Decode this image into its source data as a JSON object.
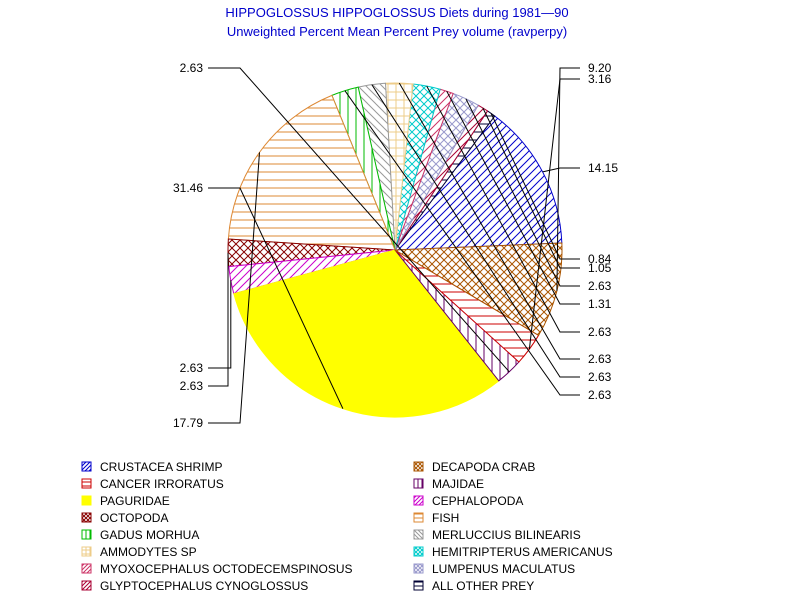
{
  "chart_data": {
    "type": "pie",
    "title": "HIPPOGLOSSUS HIPPOGLOSSUS Diets during 1981—90",
    "subtitle": "Unweighted Percent Mean Percent Prey  volume (ravperpy)",
    "slices": [
      {
        "name": "CRUSTACEA SHRIMP",
        "label": "14.15",
        "value": 14.15,
        "color": "#0000cc",
        "pattern": "diag-up"
      },
      {
        "name": "ALL OTHER PREY",
        "label": "0.84",
        "value": 0.84,
        "color": "#000033",
        "pattern": "horiz"
      },
      {
        "name": "GLYPTOCEPHALUS CYNOGLOSSUS",
        "label": "1.05",
        "value": 1.05,
        "color": "#aa0033",
        "pattern": "diag-up"
      },
      {
        "name": "LUMPENUS MACULATUS",
        "label": "2.63",
        "value": 2.63,
        "color": "#9999cc",
        "pattern": "cross-diag"
      },
      {
        "name": "MYOXOCEPHALUS OCTODECEMSPINOSUS",
        "label": "1.31",
        "value": 1.31,
        "color": "#cc3366",
        "pattern": "diag-up"
      },
      {
        "name": "HEMITRIPTERUS AMERICANUS",
        "label": "2.63",
        "value": 2.63,
        "color": "#00cccc",
        "pattern": "cross-diag"
      },
      {
        "name": "AMMODYTES SP",
        "label": "2.63",
        "value": 2.63,
        "color": "#eecc88",
        "pattern": "grid"
      },
      {
        "name": "MERLUCCIUS BILINEARIS",
        "label": "2.63",
        "value": 2.63,
        "color": "#999999",
        "pattern": "diag-down"
      },
      {
        "name": "GADUS MORHUA",
        "label": "2.63",
        "value": 2.63,
        "color": "#00bb00",
        "pattern": "vert"
      },
      {
        "name": "FISH",
        "label": "17.79",
        "value": 17.79,
        "color": "#dd8833",
        "pattern": "horiz"
      },
      {
        "name": "OCTOPODA",
        "label": "2.63",
        "value": 2.63,
        "color": "#880000",
        "pattern": "cross-diag"
      },
      {
        "name": "CEPHALOPODA",
        "label": "2.63",
        "value": 2.63,
        "color": "#cc00cc",
        "pattern": "diag-up"
      },
      {
        "name": "PAGURIDAE",
        "label": "31.46",
        "value": 31.46,
        "color": "#ffff00",
        "pattern": "solid"
      },
      {
        "name": "MAJIDAE",
        "label": "2.63",
        "value": 2.63,
        "color": "#660066",
        "pattern": "vert"
      },
      {
        "name": "CANCER IRRORATUS",
        "label": "3.16",
        "value": 3.16,
        "color": "#cc0000",
        "pattern": "horiz"
      },
      {
        "name": "DECAPODA CRAB",
        "label": "9.20",
        "value": 9.2,
        "color": "#aa5500",
        "pattern": "cross-diag"
      }
    ],
    "legend": {
      "placement": "bottom",
      "columns": [
        [
          "CRUSTACEA SHRIMP",
          "CANCER IRRORATUS",
          "PAGURIDAE",
          "OCTOPODA",
          "GADUS MORHUA",
          "AMMODYTES SP",
          "MYOXOCEPHALUS OCTODECEMSPINOSUS",
          "GLYPTOCEPHALUS CYNOGLOSSUS"
        ],
        [
          "DECAPODA CRAB",
          "MAJIDAE",
          "CEPHALOPODA",
          "FISH",
          "MERLUCCIUS BILINEARIS",
          "HEMITRIPTERUS AMERICANUS",
          "LUMPENUS MACULATUS",
          "ALL OTHER PREY"
        ]
      ]
    }
  }
}
